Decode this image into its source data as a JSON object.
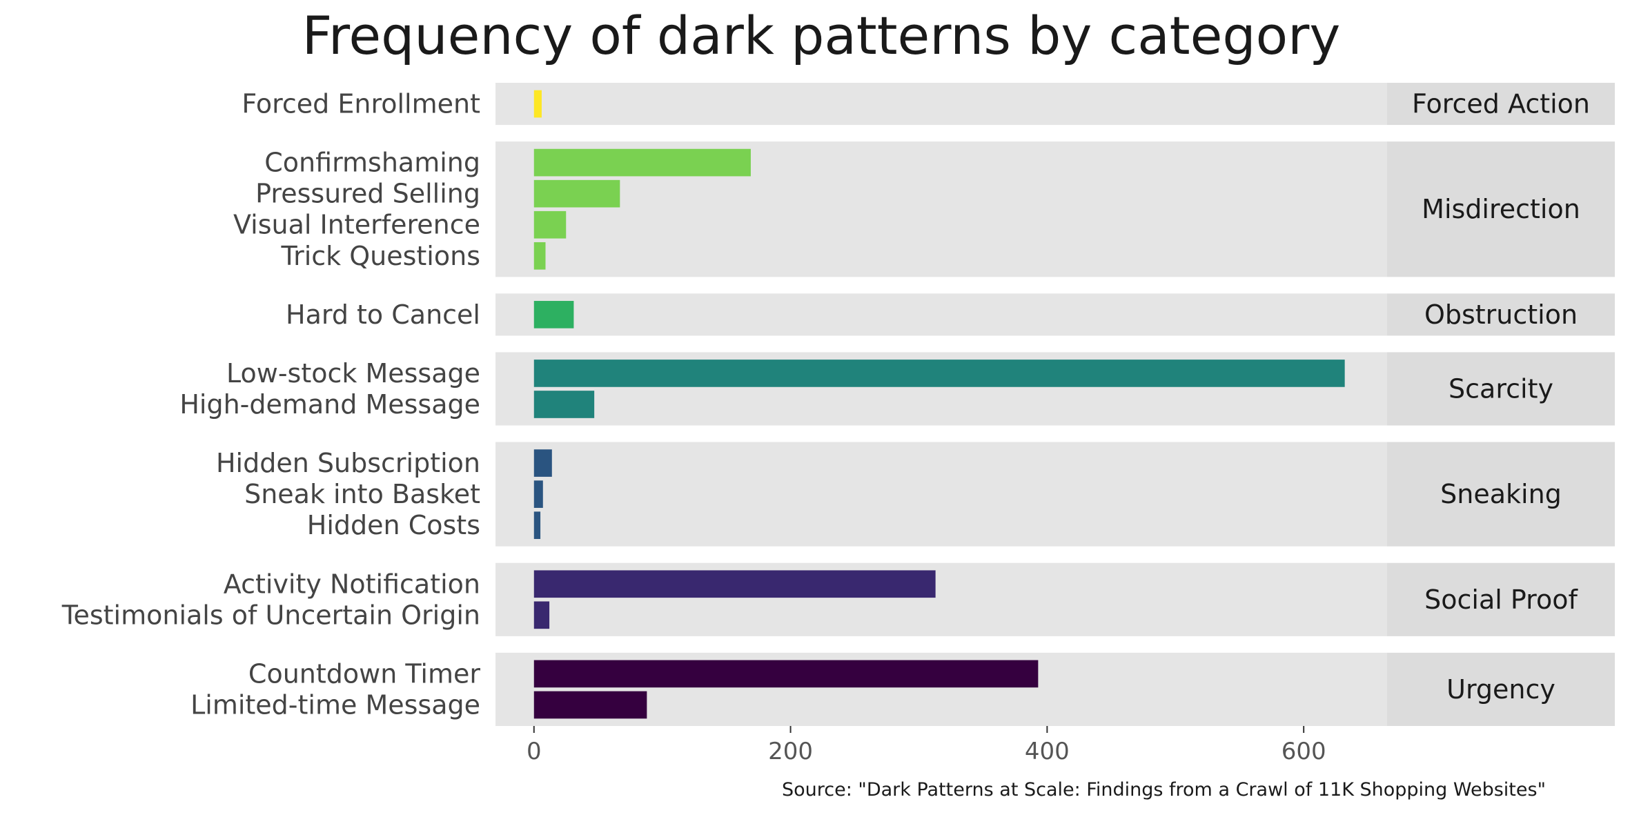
{
  "chart_data": {
    "type": "bar",
    "orientation": "horizontal",
    "title": "Frequency of dark patterns by category",
    "caption": "Source: \"Dark Patterns at Scale: Findings from a Crawl of 11K Shopping Websites\"",
    "xlabel": "",
    "ylabel": "",
    "xlim": [
      -30,
      665
    ],
    "xticks": [
      0,
      200,
      400,
      600
    ],
    "grid": false,
    "panels": [
      {
        "name": "Forced Action",
        "color": "#FDE725",
        "items": [
          {
            "label": "Forced Enrollment",
            "value": 6
          }
        ]
      },
      {
        "name": "Misdirection",
        "color": "#7AD151",
        "items": [
          {
            "label": "Confirmshaming",
            "value": 169
          },
          {
            "label": "Pressured Selling",
            "value": 67
          },
          {
            "label": "Visual Interference",
            "value": 25
          },
          {
            "label": "Trick Questions",
            "value": 9
          }
        ]
      },
      {
        "name": "Obstruction",
        "color": "#2DB061",
        "items": [
          {
            "label": "Hard to Cancel",
            "value": 31
          }
        ]
      },
      {
        "name": "Scarcity",
        "color": "#20837B",
        "items": [
          {
            "label": "Low-stock Message",
            "value": 632
          },
          {
            "label": "High-demand Message",
            "value": 47
          }
        ]
      },
      {
        "name": "Sneaking",
        "color": "#2A5480",
        "items": [
          {
            "label": "Hidden Subscription",
            "value": 14
          },
          {
            "label": "Sneak into Basket",
            "value": 7
          },
          {
            "label": "Hidden Costs",
            "value": 5
          }
        ]
      },
      {
        "name": "Social Proof",
        "color": "#39286F",
        "items": [
          {
            "label": "Activity Notification",
            "value": 313
          },
          {
            "label": "Testimonials of Uncertain Origin",
            "value": 12
          }
        ]
      },
      {
        "name": "Urgency",
        "color": "#35003F",
        "items": [
          {
            "label": "Countdown Timer",
            "value": 393
          },
          {
            "label": "Limited-time Message",
            "value": 88
          }
        ]
      }
    ]
  }
}
